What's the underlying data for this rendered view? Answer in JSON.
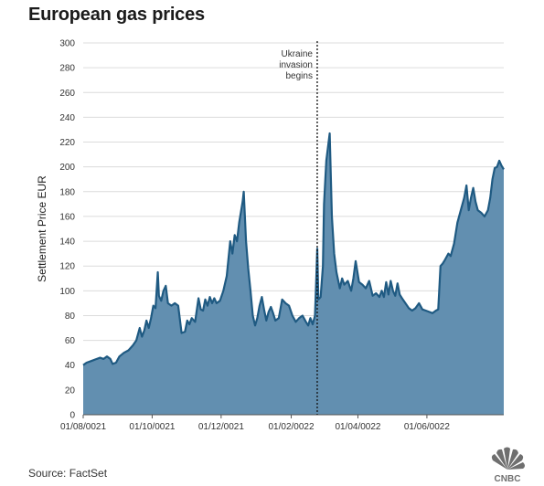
{
  "title": "European gas prices",
  "source": "Source: FactSet",
  "logo_text": "CNBC",
  "colors": {
    "fill": "#628fb0",
    "line": "#1f5a82",
    "grid": "#dcdcdc",
    "text": "#333333"
  },
  "chart_data": {
    "type": "area",
    "ylabel": "Settlement Price EUR",
    "xlabel": "",
    "ylim": [
      0,
      300
    ],
    "yticks": [
      0,
      20,
      40,
      60,
      80,
      100,
      120,
      140,
      160,
      180,
      200,
      220,
      240,
      260,
      280,
      300
    ],
    "xrange": [
      "2021-08-01",
      "2022-08-08"
    ],
    "xticks": [
      {
        "date": "2021-08-01",
        "label": "01/08/0021"
      },
      {
        "date": "2021-10-01",
        "label": "01/10/0021"
      },
      {
        "date": "2021-12-01",
        "label": "01/12/0021"
      },
      {
        "date": "2022-02-01",
        "label": "01/02/0022"
      },
      {
        "date": "2022-04-01",
        "label": "01/04/0022"
      },
      {
        "date": "2022-06-01",
        "label": "01/06/0022"
      }
    ],
    "grid": true,
    "annotation": {
      "date": "2022-02-24",
      "lines": [
        "Ukraine",
        "invasion",
        "begins"
      ]
    },
    "series": [
      {
        "values": [
          [
            "2021-08-01",
            40
          ],
          [
            "2021-08-04",
            42
          ],
          [
            "2021-08-07",
            43
          ],
          [
            "2021-08-10",
            44
          ],
          [
            "2021-08-13",
            45
          ],
          [
            "2021-08-16",
            46
          ],
          [
            "2021-08-19",
            45
          ],
          [
            "2021-08-22",
            47
          ],
          [
            "2021-08-25",
            45
          ],
          [
            "2021-08-27",
            41
          ],
          [
            "2021-08-30",
            42
          ],
          [
            "2021-09-02",
            47
          ],
          [
            "2021-09-06",
            50
          ],
          [
            "2021-09-10",
            52
          ],
          [
            "2021-09-14",
            56
          ],
          [
            "2021-09-17",
            60
          ],
          [
            "2021-09-20",
            70
          ],
          [
            "2021-09-22",
            63
          ],
          [
            "2021-09-24",
            68
          ],
          [
            "2021-09-26",
            76
          ],
          [
            "2021-09-28",
            70
          ],
          [
            "2021-09-30",
            78
          ],
          [
            "2021-10-02",
            88
          ],
          [
            "2021-10-04",
            86
          ],
          [
            "2021-10-06",
            115
          ],
          [
            "2021-10-07",
            96
          ],
          [
            "2021-10-09",
            92
          ],
          [
            "2021-10-11",
            100
          ],
          [
            "2021-10-13",
            104
          ],
          [
            "2021-10-15",
            90
          ],
          [
            "2021-10-18",
            88
          ],
          [
            "2021-10-21",
            90
          ],
          [
            "2021-10-24",
            88
          ],
          [
            "2021-10-27",
            66
          ],
          [
            "2021-10-30",
            67
          ],
          [
            "2021-11-01",
            76
          ],
          [
            "2021-11-03",
            73
          ],
          [
            "2021-11-05",
            78
          ],
          [
            "2021-11-08",
            75
          ],
          [
            "2021-11-11",
            94
          ],
          [
            "2021-11-13",
            85
          ],
          [
            "2021-11-15",
            84
          ],
          [
            "2021-11-17",
            93
          ],
          [
            "2021-11-19",
            88
          ],
          [
            "2021-11-21",
            95
          ],
          [
            "2021-11-23",
            90
          ],
          [
            "2021-11-25",
            94
          ],
          [
            "2021-11-27",
            90
          ],
          [
            "2021-11-30",
            92
          ],
          [
            "2021-12-03",
            100
          ],
          [
            "2021-12-06",
            112
          ],
          [
            "2021-12-09",
            140
          ],
          [
            "2021-12-11",
            130
          ],
          [
            "2021-12-13",
            145
          ],
          [
            "2021-12-15",
            140
          ],
          [
            "2021-12-17",
            155
          ],
          [
            "2021-12-20",
            172
          ],
          [
            "2021-12-21",
            180
          ],
          [
            "2021-12-23",
            140
          ],
          [
            "2021-12-25",
            118
          ],
          [
            "2021-12-27",
            100
          ],
          [
            "2021-12-29",
            80
          ],
          [
            "2021-12-31",
            72
          ],
          [
            "2022-01-02",
            78
          ],
          [
            "2022-01-04",
            88
          ],
          [
            "2022-01-06",
            95
          ],
          [
            "2022-01-08",
            85
          ],
          [
            "2022-01-10",
            76
          ],
          [
            "2022-01-12",
            83
          ],
          [
            "2022-01-14",
            87
          ],
          [
            "2022-01-16",
            82
          ],
          [
            "2022-01-18",
            76
          ],
          [
            "2022-01-21",
            78
          ],
          [
            "2022-01-24",
            93
          ],
          [
            "2022-01-27",
            90
          ],
          [
            "2022-01-30",
            88
          ],
          [
            "2022-02-02",
            80
          ],
          [
            "2022-02-05",
            75
          ],
          [
            "2022-02-08",
            78
          ],
          [
            "2022-02-11",
            80
          ],
          [
            "2022-02-14",
            75
          ],
          [
            "2022-02-16",
            72
          ],
          [
            "2022-02-18",
            78
          ],
          [
            "2022-02-20",
            73
          ],
          [
            "2022-02-22",
            80
          ],
          [
            "2022-02-23",
            105
          ],
          [
            "2022-02-24",
            134
          ],
          [
            "2022-02-25",
            93
          ],
          [
            "2022-02-27",
            95
          ],
          [
            "2022-03-01",
            120
          ],
          [
            "2022-03-02",
            170
          ],
          [
            "2022-03-04",
            205
          ],
          [
            "2022-03-07",
            227
          ],
          [
            "2022-03-09",
            160
          ],
          [
            "2022-03-11",
            130
          ],
          [
            "2022-03-13",
            115
          ],
          [
            "2022-03-16",
            102
          ],
          [
            "2022-03-18",
            110
          ],
          [
            "2022-03-20",
            105
          ],
          [
            "2022-03-23",
            108
          ],
          [
            "2022-03-26",
            100
          ],
          [
            "2022-03-28",
            110
          ],
          [
            "2022-03-30",
            124
          ],
          [
            "2022-04-02",
            107
          ],
          [
            "2022-04-05",
            105
          ],
          [
            "2022-04-08",
            102
          ],
          [
            "2022-04-11",
            108
          ],
          [
            "2022-04-14",
            96
          ],
          [
            "2022-04-17",
            98
          ],
          [
            "2022-04-20",
            95
          ],
          [
            "2022-04-22",
            100
          ],
          [
            "2022-04-24",
            95
          ],
          [
            "2022-04-26",
            107
          ],
          [
            "2022-04-28",
            97
          ],
          [
            "2022-04-30",
            108
          ],
          [
            "2022-05-02",
            100
          ],
          [
            "2022-05-04",
            96
          ],
          [
            "2022-05-06",
            106
          ],
          [
            "2022-05-08",
            97
          ],
          [
            "2022-05-10",
            94
          ],
          [
            "2022-05-13",
            90
          ],
          [
            "2022-05-16",
            86
          ],
          [
            "2022-05-19",
            84
          ],
          [
            "2022-05-22",
            86
          ],
          [
            "2022-05-25",
            90
          ],
          [
            "2022-05-28",
            85
          ],
          [
            "2022-05-31",
            84
          ],
          [
            "2022-06-03",
            83
          ],
          [
            "2022-06-06",
            82
          ],
          [
            "2022-06-09",
            84
          ],
          [
            "2022-06-11",
            85
          ],
          [
            "2022-06-13",
            120
          ],
          [
            "2022-06-15",
            122
          ],
          [
            "2022-06-17",
            125
          ],
          [
            "2022-06-20",
            130
          ],
          [
            "2022-06-22",
            128
          ],
          [
            "2022-06-25",
            138
          ],
          [
            "2022-06-28",
            155
          ],
          [
            "2022-07-01",
            165
          ],
          [
            "2022-07-04",
            175
          ],
          [
            "2022-07-06",
            185
          ],
          [
            "2022-07-08",
            165
          ],
          [
            "2022-07-10",
            175
          ],
          [
            "2022-07-12",
            183
          ],
          [
            "2022-07-14",
            172
          ],
          [
            "2022-07-16",
            165
          ],
          [
            "2022-07-19",
            163
          ],
          [
            "2022-07-22",
            160
          ],
          [
            "2022-07-25",
            165
          ],
          [
            "2022-07-27",
            175
          ],
          [
            "2022-07-29",
            190
          ],
          [
            "2022-07-31",
            199
          ],
          [
            "2022-08-02",
            200
          ],
          [
            "2022-08-04",
            205
          ],
          [
            "2022-08-06",
            201
          ],
          [
            "2022-08-08",
            198
          ]
        ]
      }
    ]
  }
}
